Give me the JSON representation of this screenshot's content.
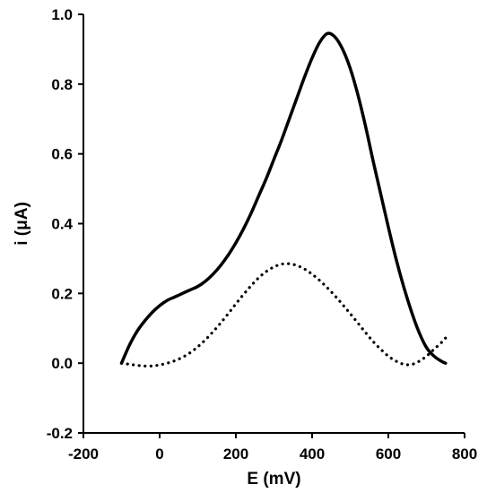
{
  "chart_data": {
    "type": "line",
    "xlabel": "E (mV)",
    "ylabel": "i (μA)",
    "xlim": [
      -200,
      800
    ],
    "ylim": [
      -0.2,
      1.0
    ],
    "x_ticks": [
      -200,
      0,
      200,
      400,
      600,
      800
    ],
    "y_ticks": [
      -0.2,
      0.0,
      0.2,
      0.4,
      0.6,
      0.8,
      1.0
    ],
    "x_tick_labels": [
      "-200",
      "0",
      "200",
      "400",
      "600",
      "800"
    ],
    "y_tick_labels": [
      "-0.2",
      "0.0",
      "0.2",
      "0.4",
      "0.6",
      "0.8",
      "1.0"
    ],
    "grid": false,
    "legend": "none",
    "series": [
      {
        "style": "solid",
        "color": "#000000",
        "x": [
          -100,
          -80,
          -60,
          -40,
          -20,
          0,
          20,
          40,
          60,
          80,
          100,
          120,
          140,
          160,
          180,
          200,
          220,
          240,
          260,
          280,
          300,
          320,
          340,
          360,
          380,
          400,
          420,
          440,
          460,
          480,
          500,
          520,
          540,
          560,
          580,
          600,
          620,
          640,
          660,
          680,
          700,
          720,
          740,
          750
        ],
        "y": [
          0.0,
          0.05,
          0.09,
          0.12,
          0.145,
          0.165,
          0.18,
          0.19,
          0.2,
          0.21,
          0.22,
          0.235,
          0.255,
          0.28,
          0.31,
          0.345,
          0.385,
          0.43,
          0.48,
          0.53,
          0.585,
          0.64,
          0.7,
          0.76,
          0.82,
          0.875,
          0.92,
          0.945,
          0.935,
          0.9,
          0.845,
          0.77,
          0.68,
          0.58,
          0.485,
          0.39,
          0.3,
          0.22,
          0.15,
          0.09,
          0.045,
          0.02,
          0.005,
          0.0
        ]
      },
      {
        "style": "dotted",
        "color": "#000000",
        "x": [
          -100,
          -80,
          -60,
          -40,
          -20,
          0,
          20,
          40,
          60,
          80,
          100,
          120,
          140,
          160,
          180,
          200,
          220,
          240,
          260,
          280,
          300,
          320,
          340,
          360,
          380,
          400,
          420,
          440,
          460,
          480,
          500,
          520,
          540,
          560,
          580,
          600,
          620,
          640,
          660,
          680,
          700,
          720,
          740,
          750
        ],
        "y": [
          0.0,
          -0.003,
          -0.006,
          -0.008,
          -0.008,
          -0.005,
          0.0,
          0.007,
          0.017,
          0.03,
          0.047,
          0.067,
          0.09,
          0.115,
          0.142,
          0.17,
          0.197,
          0.222,
          0.245,
          0.263,
          0.276,
          0.284,
          0.285,
          0.28,
          0.27,
          0.255,
          0.237,
          0.216,
          0.193,
          0.168,
          0.142,
          0.115,
          0.088,
          0.062,
          0.04,
          0.02,
          0.006,
          -0.003,
          -0.004,
          0.005,
          0.02,
          0.04,
          0.06,
          0.072
        ]
      }
    ]
  }
}
